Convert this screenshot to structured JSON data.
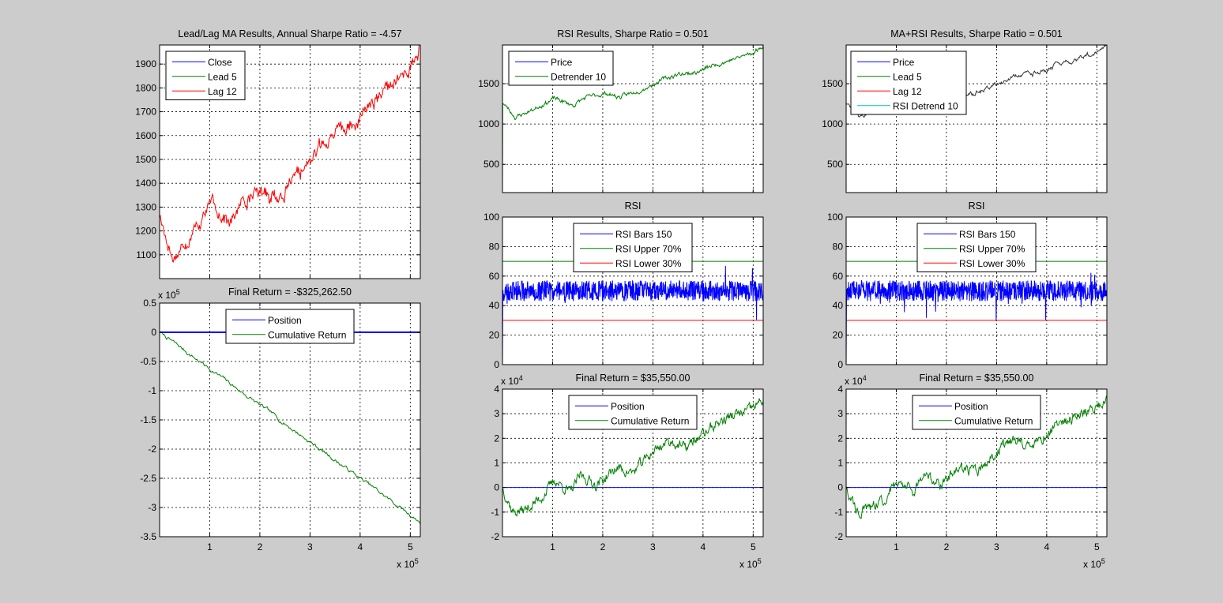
{
  "figure": {
    "background": "#cccccc"
  },
  "chart_data": [
    {
      "id": "ma-price",
      "type": "line",
      "title": "Lead/Lag MA Results, Annual Sharpe Ratio = -4.57",
      "xlim": [
        0,
        520000
      ],
      "ylim": [
        1000,
        1980
      ],
      "xticks": [
        100000,
        200000,
        300000,
        400000,
        500000
      ],
      "xtick_labels": [],
      "yticks": [
        1100,
        1200,
        1300,
        1400,
        1500,
        1600,
        1700,
        1800,
        1900
      ],
      "ytick_labels": [
        "1100",
        "1200",
        "1300",
        "1400",
        "1500",
        "1600",
        "1700",
        "1800",
        "1900"
      ],
      "grid": true,
      "legend": {
        "position": "top-left"
      },
      "series": [
        {
          "name": "Close",
          "color": "#0000ff",
          "kind": "price",
          "hidden": true
        },
        {
          "name": "Lead 5",
          "color": "#008000",
          "kind": "price",
          "hidden": true
        },
        {
          "name": "Lag 12",
          "color": "#ff0000",
          "kind": "price",
          "noise": 22
        }
      ]
    },
    {
      "id": "ma-return",
      "type": "line",
      "title": "Final Return = -$325,262.50",
      "xlim": [
        0,
        520000
      ],
      "ylim": [
        -3.5,
        0.5
      ],
      "y_exponent": "5",
      "x_exponent": "5",
      "xticks": [
        100000,
        200000,
        300000,
        400000,
        500000
      ],
      "xtick_labels": [
        "1",
        "2",
        "3",
        "4",
        "5"
      ],
      "yticks": [
        -3.5,
        -3,
        -2.5,
        -2,
        -1.5,
        -1,
        -0.5,
        0,
        0.5
      ],
      "ytick_labels": [
        "-3.5",
        "-3",
        "-2.5",
        "-2",
        "-1.5",
        "-1",
        "-0.5",
        "0",
        "0.5"
      ],
      "grid": true,
      "legend": {
        "position": "top-center"
      },
      "series": [
        {
          "name": "Position",
          "color": "#0000ff",
          "kind": "flat",
          "value": 0
        },
        {
          "name": "Cumulative Return",
          "color": "#008000",
          "kind": "decline",
          "start": 0,
          "end": -3.25
        }
      ]
    },
    {
      "id": "rsi-price",
      "type": "line",
      "title": "RSI Results, Sharpe Ratio = 0.501",
      "xlim": [
        0,
        520000
      ],
      "ylim": [
        150,
        1980
      ],
      "xticks": [
        100000,
        200000,
        300000,
        400000,
        500000
      ],
      "xtick_labels": [],
      "yticks": [
        500,
        1000,
        1500
      ],
      "ytick_labels": [
        "500",
        "1000",
        "1500"
      ],
      "grid": true,
      "legend": {
        "position": "top-left"
      },
      "series": [
        {
          "name": "Price",
          "color": "#0000ff",
          "kind": "price",
          "hidden": true
        },
        {
          "name": "Detrender 10",
          "color": "#008000",
          "kind": "price",
          "noise": 10,
          "spike": true
        }
      ]
    },
    {
      "id": "rsi-rsi",
      "type": "line",
      "title": "RSI",
      "xlim": [
        0,
        520000
      ],
      "ylim": [
        0,
        100
      ],
      "xticks": [
        100000,
        200000,
        300000,
        400000,
        500000
      ],
      "xtick_labels": [],
      "yticks": [
        0,
        20,
        40,
        60,
        80,
        100
      ],
      "ytick_labels": [
        "0",
        "20",
        "40",
        "60",
        "80",
        "100"
      ],
      "grid": true,
      "legend": {
        "position": "top-center"
      },
      "series": [
        {
          "name": "RSI Bars 150",
          "color": "#0000ff",
          "kind": "rsi",
          "center": 50
        },
        {
          "name": "RSI Upper 70%",
          "color": "#008000",
          "kind": "flat",
          "value": 70
        },
        {
          "name": "RSI Lower 30%",
          "color": "#ff0000",
          "kind": "flat",
          "value": 30
        }
      ]
    },
    {
      "id": "rsi-return",
      "type": "line",
      "title": "Final Return = $35,550.00",
      "xlim": [
        0,
        520000
      ],
      "ylim": [
        -2,
        4
      ],
      "y_exponent": "4",
      "x_exponent": "5",
      "xticks": [
        100000,
        200000,
        300000,
        400000,
        500000
      ],
      "xtick_labels": [
        "1",
        "2",
        "3",
        "4",
        "5"
      ],
      "yticks": [
        -2,
        -1,
        0,
        1,
        2,
        3,
        4
      ],
      "ytick_labels": [
        "-2",
        "-1",
        "0",
        "1",
        "2",
        "3",
        "4"
      ],
      "grid": true,
      "legend": {
        "position": "top-center"
      },
      "series": [
        {
          "name": "Position",
          "color": "#0000ff",
          "kind": "flat",
          "value": 0
        },
        {
          "name": "Cumulative Return",
          "color": "#008000",
          "kind": "cumret",
          "end": 3.55
        }
      ]
    },
    {
      "id": "combo-price",
      "type": "line",
      "title": "MA+RSI Results, Sharpe Ratio = 0.501",
      "xlim": [
        0,
        520000
      ],
      "ylim": [
        150,
        1980
      ],
      "xticks": [
        100000,
        200000,
        300000,
        400000,
        500000
      ],
      "xtick_labels": [],
      "yticks": [
        500,
        1000,
        1500
      ],
      "ytick_labels": [
        "500",
        "1000",
        "1500"
      ],
      "grid": true,
      "legend": {
        "position": "top-left"
      },
      "series": [
        {
          "name": "Price",
          "color": "#0000ff",
          "kind": "price",
          "hidden": true
        },
        {
          "name": "Lead 5",
          "color": "#008000",
          "kind": "price",
          "hidden": true
        },
        {
          "name": "Lag 12",
          "color": "#ff0000",
          "kind": "price",
          "hidden": true
        },
        {
          "name": "RSI Detrend 10",
          "color": "#00bfbf",
          "kind": "price",
          "draw_color": "#333333",
          "noise": 10
        }
      ]
    },
    {
      "id": "combo-rsi",
      "type": "line",
      "title": "RSI",
      "xlim": [
        0,
        520000
      ],
      "ylim": [
        0,
        100
      ],
      "xticks": [
        100000,
        200000,
        300000,
        400000,
        500000
      ],
      "xtick_labels": [],
      "yticks": [
        0,
        20,
        40,
        60,
        80,
        100
      ],
      "ytick_labels": [
        "0",
        "20",
        "40",
        "60",
        "80",
        "100"
      ],
      "grid": true,
      "legend": {
        "position": "top-center"
      },
      "series": [
        {
          "name": "RSI Bars 150",
          "color": "#0000ff",
          "kind": "rsi",
          "center": 50
        },
        {
          "name": "RSI Upper 70%",
          "color": "#008000",
          "kind": "flat",
          "value": 70
        },
        {
          "name": "RSI Lower 30%",
          "color": "#ff0000",
          "kind": "flat",
          "value": 30
        }
      ]
    },
    {
      "id": "combo-return",
      "type": "line",
      "title": "Final Return = $35,550.00",
      "xlim": [
        0,
        520000
      ],
      "ylim": [
        -2,
        4
      ],
      "y_exponent": "4",
      "x_exponent": "5",
      "xticks": [
        100000,
        200000,
        300000,
        400000,
        500000
      ],
      "xtick_labels": [
        "1",
        "2",
        "3",
        "4",
        "5"
      ],
      "yticks": [
        -2,
        -1,
        0,
        1,
        2,
        3,
        4
      ],
      "ytick_labels": [
        "-2",
        "-1",
        "0",
        "1",
        "2",
        "3",
        "4"
      ],
      "grid": true,
      "legend": {
        "position": "top-center"
      },
      "series": [
        {
          "name": "Position",
          "color": "#0000ff",
          "kind": "flat",
          "value": 0
        },
        {
          "name": "Cumulative Return",
          "color": "#008000",
          "kind": "cumret",
          "end": 3.55
        }
      ]
    }
  ]
}
